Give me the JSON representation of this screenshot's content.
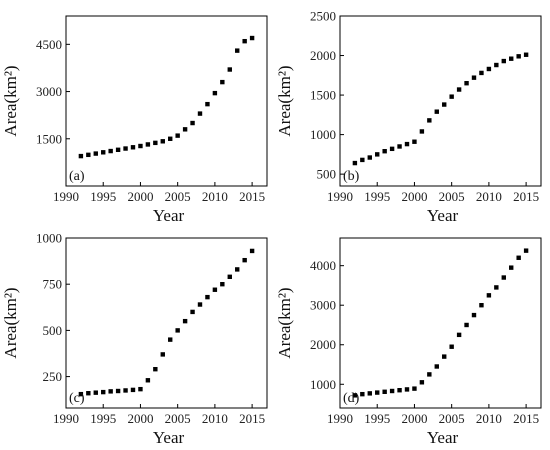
{
  "figure": {
    "panels": [
      {
        "label": "(a)",
        "ylabel": "Area(km²)",
        "xlabel": "Year"
      },
      {
        "label": "(b)",
        "ylabel": "Area(km²)",
        "xlabel": "Year"
      },
      {
        "label": "(c)",
        "ylabel": "Area(km²)",
        "xlabel": "Year"
      },
      {
        "label": "(d)",
        "ylabel": "Area(km²)",
        "xlabel": "Year"
      }
    ]
  },
  "chart_data": [
    {
      "type": "scatter",
      "title": "",
      "panel_label": "(a)",
      "xlabel": "Year",
      "ylabel": "Area(km²)",
      "xlim": [
        1990,
        2017
      ],
      "ylim": [
        0,
        5400
      ],
      "xticks": [
        1990,
        1995,
        2000,
        2005,
        2010,
        2015
      ],
      "yticks": [
        1500,
        3000,
        4500
      ],
      "ytick_labels": [
        "1500",
        "3000",
        "4500"
      ],
      "marker": "square",
      "color": "#000000",
      "series": [
        {
          "x": [
            1992,
            1993,
            1994,
            1995,
            1996,
            1997,
            1998,
            1999,
            2000,
            2001,
            2002,
            2003,
            2004,
            2005,
            2006,
            2007,
            2008,
            2009,
            2010,
            2011,
            2012,
            2013,
            2014,
            2015
          ],
          "y": [
            950,
            990,
            1030,
            1070,
            1110,
            1150,
            1190,
            1230,
            1270,
            1320,
            1370,
            1420,
            1500,
            1600,
            1800,
            2000,
            2300,
            2600,
            2950,
            3300,
            3700,
            4300,
            4600,
            4700
          ]
        }
      ]
    },
    {
      "type": "scatter",
      "title": "",
      "panel_label": "(b)",
      "xlabel": "Year",
      "ylabel": "Area(km²)",
      "xlim": [
        1990,
        2017
      ],
      "ylim": [
        350,
        2500
      ],
      "xticks": [
        1990,
        1995,
        2000,
        2005,
        2010,
        2015
      ],
      "yticks": [
        500,
        1000,
        1500,
        2000,
        2500
      ],
      "ytick_labels": [
        "500",
        "1000",
        "1500",
        "2000",
        "2500"
      ],
      "marker": "square",
      "color": "#000000",
      "series": [
        {
          "x": [
            1992,
            1993,
            1994,
            1995,
            1996,
            1997,
            1998,
            1999,
            2000,
            2001,
            2002,
            2003,
            2004,
            2005,
            2006,
            2007,
            2008,
            2009,
            2010,
            2011,
            2012,
            2013,
            2014,
            2015
          ],
          "y": [
            640,
            680,
            710,
            750,
            790,
            820,
            850,
            880,
            910,
            1040,
            1180,
            1290,
            1380,
            1480,
            1570,
            1650,
            1720,
            1780,
            1830,
            1880,
            1930,
            1960,
            1990,
            2010
          ]
        }
      ]
    },
    {
      "type": "scatter",
      "title": "",
      "panel_label": "(c)",
      "xlabel": "Year",
      "ylabel": "Area(km²)",
      "xlim": [
        1990,
        2017
      ],
      "ylim": [
        80,
        1000
      ],
      "xticks": [
        1990,
        1995,
        2000,
        2005,
        2010,
        2015
      ],
      "yticks": [
        250,
        500,
        750,
        1000
      ],
      "ytick_labels": [
        "250",
        "500",
        "750",
        "1000"
      ],
      "marker": "square",
      "color": "#000000",
      "series": [
        {
          "x": [
            1992,
            1993,
            1994,
            1995,
            1996,
            1997,
            1998,
            1999,
            2000,
            2001,
            2002,
            2003,
            2004,
            2005,
            2006,
            2007,
            2008,
            2009,
            2010,
            2011,
            2012,
            2013,
            2014,
            2015
          ],
          "y": [
            155,
            160,
            163,
            166,
            170,
            172,
            175,
            178,
            182,
            230,
            290,
            370,
            450,
            500,
            550,
            600,
            640,
            680,
            720,
            750,
            790,
            830,
            880,
            930
          ]
        }
      ]
    },
    {
      "type": "scatter",
      "title": "",
      "panel_label": "(d)",
      "xlabel": "Year",
      "ylabel": "Area(km²)",
      "xlim": [
        1990,
        2017
      ],
      "ylim": [
        400,
        4700
      ],
      "xticks": [
        1990,
        1995,
        2000,
        2005,
        2010,
        2015
      ],
      "yticks": [
        1000,
        2000,
        3000,
        4000
      ],
      "ytick_labels": [
        "1000",
        "2000",
        "3000",
        "4000"
      ],
      "marker": "square",
      "color": "#000000",
      "series": [
        {
          "x": [
            1992,
            1993,
            1994,
            1995,
            1996,
            1997,
            1998,
            1999,
            2000,
            2001,
            2002,
            2003,
            2004,
            2005,
            2006,
            2007,
            2008,
            2009,
            2010,
            2011,
            2012,
            2013,
            2014,
            2015
          ],
          "y": [
            720,
            750,
            770,
            790,
            810,
            830,
            850,
            870,
            890,
            1050,
            1250,
            1450,
            1700,
            1950,
            2250,
            2500,
            2750,
            3000,
            3250,
            3450,
            3700,
            3950,
            4200,
            4380
          ]
        }
      ]
    }
  ]
}
